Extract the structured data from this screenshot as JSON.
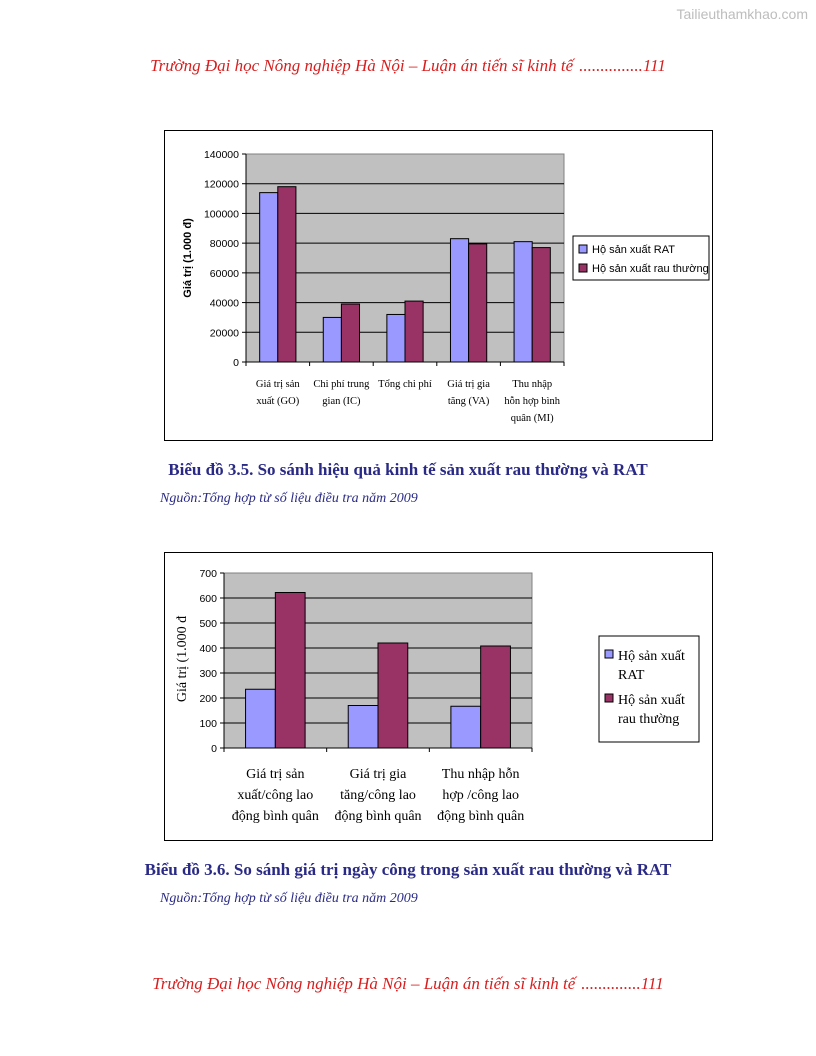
{
  "watermark": "Tailieuthamkhao.com",
  "header": {
    "title": "Trường Đại học Nông nghiệp Hà Nội – Luận án tiến sĩ kinh tế",
    "page": "...............111"
  },
  "footer": {
    "title": "Trường Đại học Nông nghiệp Hà Nội – Luận án tiến sĩ kinh tế",
    "page": "..............111"
  },
  "chart_data": [
    {
      "type": "bar",
      "ylabel": "Giá trị (1.000 đ)",
      "ylim": [
        0,
        140000
      ],
      "yticks": [
        "140000",
        "120000",
        "100000",
        "80000",
        "60000",
        "40000",
        "20000",
        "0"
      ],
      "categories": [
        [
          "Giá trị sản",
          "xuất (GO)"
        ],
        [
          "Chi phí trung",
          "gian (IC)"
        ],
        [
          "Tổng chi phí"
        ],
        [
          "Giá trị gia",
          "tăng (VA)"
        ],
        [
          "Thu nhập",
          "hỗn hợp bình",
          "quân (MI)"
        ]
      ],
      "series": [
        {
          "name": "Hộ sản xuất RAT",
          "color": "#9999ff",
          "values": [
            114000,
            30000,
            32000,
            83000,
            81000
          ]
        },
        {
          "name": "Hộ sản xuất rau thường",
          "color": "#993366",
          "values": [
            118000,
            39000,
            41000,
            79500,
            77000
          ]
        }
      ],
      "legend": "right",
      "grid": true
    },
    {
      "type": "bar",
      "ylabel": "Giá trị (1.000 đ",
      "ylim": [
        0,
        700
      ],
      "yticks": [
        "700",
        "600",
        "500",
        "400",
        "300",
        "200",
        "100",
        "0"
      ],
      "categories": [
        [
          "Giá trị sản",
          "xuất/công lao",
          "động bình quân"
        ],
        [
          "Giá trị gia",
          "tăng/công lao",
          "động bình quân"
        ],
        [
          "Thu nhập hỗn",
          "hợp /công lao",
          "động bình quân"
        ]
      ],
      "series": [
        {
          "name": "Hộ sản xuất RAT",
          "legend_lines": [
            "Hộ sản xuất",
            "RAT"
          ],
          "color": "#9999ff",
          "values": [
            235,
            170,
            167
          ]
        },
        {
          "name": "Hộ sản xuất rau thường",
          "legend_lines": [
            "Hộ sản xuất",
            "rau thường"
          ],
          "color": "#993366",
          "values": [
            622,
            420,
            408
          ]
        }
      ],
      "legend": "right",
      "grid": true
    }
  ],
  "figure1": {
    "caption": "Biểu đồ 3.5. So sánh hiệu quả kinh tế sản xuất rau thường và RAT",
    "source": "Nguồn:Tổng hợp từ số liệu điều tra năm 2009"
  },
  "figure2": {
    "caption": "Biểu đồ 3.6. So sánh giá trị ngày công trong sản xuất rau thường và RAT",
    "source": "Nguồn:Tổng hợp từ số liệu điều tra năm 2009"
  }
}
